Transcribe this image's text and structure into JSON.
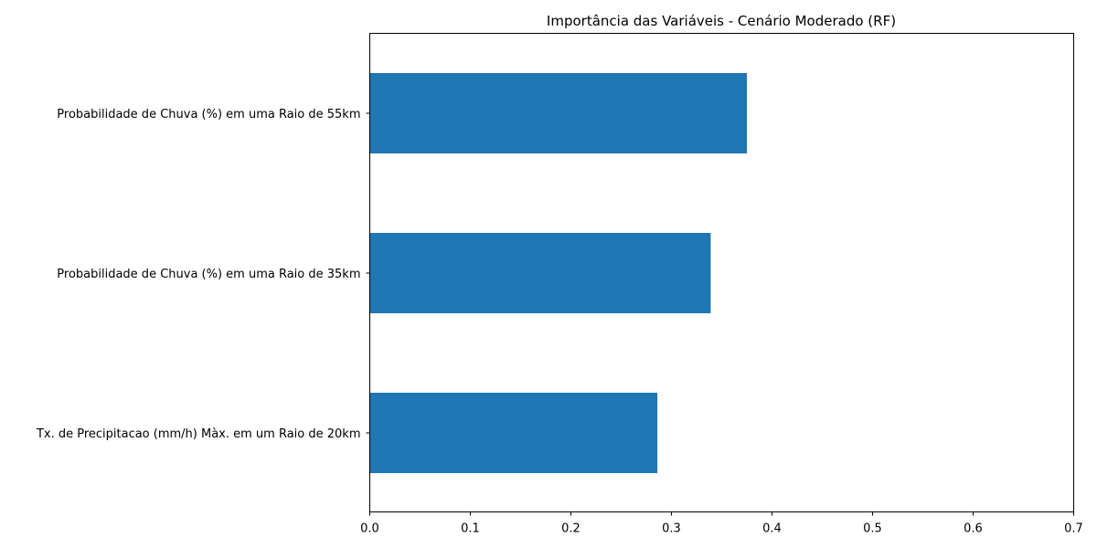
{
  "chart_data": {
    "type": "bar",
    "orientation": "horizontal",
    "title": "Importância das Variáveis - Cenário Moderado (RF)",
    "xlabel": "",
    "ylabel": "",
    "categories": [
      "Probabilidade de Chuva (%) em uma Raio de 55km",
      "Probabilidade de Chuva (%) em uma Raio de 35km",
      "Tx. de Precipitacao (mm/h) Màx. em um Raio de 20km"
    ],
    "values": [
      0.375,
      0.339,
      0.286
    ],
    "xlim": [
      0,
      0.7
    ],
    "xticks": [
      "0.0",
      "0.1",
      "0.2",
      "0.3",
      "0.4",
      "0.5",
      "0.6",
      "0.7"
    ],
    "grid": false,
    "legend": "none",
    "bar_color": "#1f77b4"
  }
}
